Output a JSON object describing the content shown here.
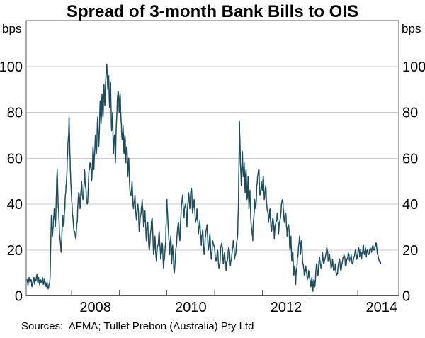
{
  "title": "Spread of 3-month Bank Bills to OIS",
  "unit": "bps",
  "source_note": "Sources:  AFMA; Tullet Prebon (Australia) Pty Ltd",
  "colors": {
    "line": "#1d4e5e",
    "grid": "#c9c9c9",
    "frame": "#58595b",
    "text": "#000000"
  },
  "chart_data": {
    "type": "line",
    "title": "Spread of 3-month Bank Bills to OIS",
    "ylabel_left": "bps",
    "ylabel_right": "bps",
    "x_domain": [
      2007.05,
      2014.86
    ],
    "y_domain": [
      0,
      120
    ],
    "y_ticks": [
      0,
      20,
      40,
      60,
      80,
      100
    ],
    "y_gridlines": [
      20,
      40,
      60,
      80,
      100
    ],
    "x_year_ticks": [
      2008,
      2009,
      2010,
      2011,
      2012,
      2013,
      2014
    ],
    "x_labels": [
      {
        "pos": 2008.5,
        "text": "2008"
      },
      {
        "pos": 2010.5,
        "text": "2010"
      },
      {
        "pos": 2012.5,
        "text": "2012"
      },
      {
        "pos": 2014.5,
        "text": "2014"
      }
    ],
    "points": [
      [
        2007.07,
        7
      ],
      [
        2007.09,
        5
      ],
      [
        2007.11,
        8
      ],
      [
        2007.13,
        6
      ],
      [
        2007.15,
        7
      ],
      [
        2007.17,
        4
      ],
      [
        2007.19,
        6
      ],
      [
        2007.21,
        8
      ],
      [
        2007.23,
        5
      ],
      [
        2007.25,
        7
      ],
      [
        2007.27,
        9
      ],
      [
        2007.29,
        6
      ],
      [
        2007.31,
        8
      ],
      [
        2007.33,
        5
      ],
      [
        2007.35,
        7
      ],
      [
        2007.37,
        6
      ],
      [
        2007.39,
        8
      ],
      [
        2007.41,
        5
      ],
      [
        2007.43,
        7
      ],
      [
        2007.45,
        6
      ],
      [
        2007.47,
        4
      ],
      [
        2007.49,
        6
      ],
      [
        2007.51,
        3
      ],
      [
        2007.53,
        5
      ],
      [
        2007.55,
        8
      ],
      [
        2007.57,
        28
      ],
      [
        2007.58,
        35
      ],
      [
        2007.6,
        26
      ],
      [
        2007.62,
        33
      ],
      [
        2007.64,
        38
      ],
      [
        2007.66,
        30
      ],
      [
        2007.68,
        42
      ],
      [
        2007.7,
        55
      ],
      [
        2007.72,
        40
      ],
      [
        2007.74,
        32
      ],
      [
        2007.76,
        25
      ],
      [
        2007.78,
        19
      ],
      [
        2007.8,
        28
      ],
      [
        2007.82,
        35
      ],
      [
        2007.84,
        30
      ],
      [
        2007.86,
        38
      ],
      [
        2007.88,
        45
      ],
      [
        2007.9,
        52
      ],
      [
        2007.92,
        63
      ],
      [
        2007.94,
        70
      ],
      [
        2007.95,
        78
      ],
      [
        2007.97,
        60
      ],
      [
        2007.99,
        48
      ],
      [
        2008.01,
        40
      ],
      [
        2008.03,
        34
      ],
      [
        2008.06,
        28
      ],
      [
        2008.09,
        25
      ],
      [
        2008.12,
        32
      ],
      [
        2008.15,
        45
      ],
      [
        2008.18,
        38
      ],
      [
        2008.21,
        50
      ],
      [
        2008.24,
        42
      ],
      [
        2008.27,
        55
      ],
      [
        2008.3,
        47
      ],
      [
        2008.33,
        40
      ],
      [
        2008.36,
        52
      ],
      [
        2008.39,
        58
      ],
      [
        2008.42,
        50
      ],
      [
        2008.45,
        65
      ],
      [
        2008.47,
        55
      ],
      [
        2008.5,
        70
      ],
      [
        2008.52,
        62
      ],
      [
        2008.55,
        78
      ],
      [
        2008.57,
        65
      ],
      [
        2008.6,
        85
      ],
      [
        2008.62,
        75
      ],
      [
        2008.64,
        88
      ],
      [
        2008.66,
        78
      ],
      [
        2008.68,
        92
      ],
      [
        2008.7,
        83
      ],
      [
        2008.72,
        95
      ],
      [
        2008.74,
        101
      ],
      [
        2008.76,
        90
      ],
      [
        2008.78,
        96
      ],
      [
        2008.8,
        82
      ],
      [
        2008.82,
        93
      ],
      [
        2008.84,
        72
      ],
      [
        2008.86,
        80
      ],
      [
        2008.88,
        62
      ],
      [
        2008.9,
        70
      ],
      [
        2008.92,
        58
      ],
      [
        2008.94,
        75
      ],
      [
        2008.96,
        85
      ],
      [
        2008.98,
        89
      ],
      [
        2009.0,
        80
      ],
      [
        2009.02,
        88
      ],
      [
        2009.04,
        76
      ],
      [
        2009.06,
        68
      ],
      [
        2009.08,
        74
      ],
      [
        2009.1,
        62
      ],
      [
        2009.12,
        70
      ],
      [
        2009.14,
        58
      ],
      [
        2009.16,
        65
      ],
      [
        2009.18,
        52
      ],
      [
        2009.2,
        60
      ],
      [
        2009.22,
        48
      ],
      [
        2009.24,
        44
      ],
      [
        2009.27,
        50
      ],
      [
        2009.3,
        38
      ],
      [
        2009.33,
        44
      ],
      [
        2009.36,
        33
      ],
      [
        2009.39,
        40
      ],
      [
        2009.42,
        28
      ],
      [
        2009.45,
        35
      ],
      [
        2009.48,
        42
      ],
      [
        2009.51,
        30
      ],
      [
        2009.54,
        37
      ],
      [
        2009.57,
        24
      ],
      [
        2009.6,
        32
      ],
      [
        2009.63,
        20
      ],
      [
        2009.66,
        28
      ],
      [
        2009.69,
        34
      ],
      [
        2009.72,
        18
      ],
      [
        2009.75,
        26
      ],
      [
        2009.78,
        15
      ],
      [
        2009.81,
        22
      ],
      [
        2009.84,
        28
      ],
      [
        2009.87,
        16
      ],
      [
        2009.9,
        23
      ],
      [
        2009.93,
        12
      ],
      [
        2009.96,
        20
      ],
      [
        2009.98,
        30
      ],
      [
        2010.0,
        42
      ],
      [
        2010.02,
        33
      ],
      [
        2010.04,
        25
      ],
      [
        2010.06,
        18
      ],
      [
        2010.08,
        26
      ],
      [
        2010.1,
        14
      ],
      [
        2010.12,
        22
      ],
      [
        2010.15,
        10
      ],
      [
        2010.18,
        18
      ],
      [
        2010.21,
        26
      ],
      [
        2010.24,
        32
      ],
      [
        2010.27,
        24
      ],
      [
        2010.3,
        38
      ],
      [
        2010.33,
        44
      ],
      [
        2010.36,
        34
      ],
      [
        2010.39,
        40
      ],
      [
        2010.42,
        30
      ],
      [
        2010.45,
        45
      ],
      [
        2010.48,
        38
      ],
      [
        2010.51,
        47
      ],
      [
        2010.54,
        36
      ],
      [
        2010.57,
        42
      ],
      [
        2010.6,
        32
      ],
      [
        2010.63,
        38
      ],
      [
        2010.66,
        27
      ],
      [
        2010.69,
        33
      ],
      [
        2010.72,
        22
      ],
      [
        2010.75,
        29
      ],
      [
        2010.78,
        18
      ],
      [
        2010.81,
        26
      ],
      [
        2010.84,
        31
      ],
      [
        2010.87,
        20
      ],
      [
        2010.9,
        27
      ],
      [
        2010.93,
        16
      ],
      [
        2010.96,
        24
      ],
      [
        2011.0,
        21
      ],
      [
        2011.03,
        15
      ],
      [
        2011.06,
        20
      ],
      [
        2011.09,
        12
      ],
      [
        2011.12,
        18
      ],
      [
        2011.15,
        23
      ],
      [
        2011.18,
        14
      ],
      [
        2011.21,
        19
      ],
      [
        2011.24,
        11
      ],
      [
        2011.27,
        16
      ],
      [
        2011.3,
        21
      ],
      [
        2011.33,
        13
      ],
      [
        2011.36,
        18
      ],
      [
        2011.39,
        24
      ],
      [
        2011.42,
        16
      ],
      [
        2011.45,
        20
      ],
      [
        2011.48,
        26
      ],
      [
        2011.5,
        40
      ],
      [
        2011.52,
        76
      ],
      [
        2011.54,
        58
      ],
      [
        2011.56,
        48
      ],
      [
        2011.58,
        63
      ],
      [
        2011.6,
        52
      ],
      [
        2011.62,
        58
      ],
      [
        2011.64,
        45
      ],
      [
        2011.66,
        55
      ],
      [
        2011.68,
        42
      ],
      [
        2011.7,
        52
      ],
      [
        2011.72,
        38
      ],
      [
        2011.74,
        46
      ],
      [
        2011.76,
        33
      ],
      [
        2011.78,
        28
      ],
      [
        2011.8,
        24
      ],
      [
        2011.82,
        34
      ],
      [
        2011.84,
        42
      ],
      [
        2011.86,
        38
      ],
      [
        2011.88,
        46
      ],
      [
        2011.9,
        52
      ],
      [
        2011.93,
        55
      ],
      [
        2011.95,
        44
      ],
      [
        2011.98,
        50
      ],
      [
        2012.0,
        46
      ],
      [
        2012.02,
        52
      ],
      [
        2012.04,
        42
      ],
      [
        2012.07,
        48
      ],
      [
        2012.1,
        38
      ],
      [
        2012.13,
        32
      ],
      [
        2012.16,
        38
      ],
      [
        2012.19,
        28
      ],
      [
        2012.22,
        34
      ],
      [
        2012.25,
        25
      ],
      [
        2012.28,
        31
      ],
      [
        2012.31,
        36
      ],
      [
        2012.34,
        27
      ],
      [
        2012.37,
        33
      ],
      [
        2012.4,
        40
      ],
      [
        2012.43,
        42
      ],
      [
        2012.46,
        32
      ],
      [
        2012.49,
        36
      ],
      [
        2012.52,
        26
      ],
      [
        2012.55,
        31
      ],
      [
        2012.58,
        20
      ],
      [
        2012.6,
        26
      ],
      [
        2012.62,
        15
      ],
      [
        2012.64,
        19
      ],
      [
        2012.66,
        9
      ],
      [
        2012.68,
        13
      ],
      [
        2012.7,
        5
      ],
      [
        2012.72,
        12
      ],
      [
        2012.74,
        17
      ],
      [
        2012.76,
        22
      ],
      [
        2012.78,
        26
      ],
      [
        2012.8,
        18
      ],
      [
        2012.82,
        24
      ],
      [
        2012.85,
        14
      ],
      [
        2012.88,
        9
      ],
      [
        2012.91,
        13
      ],
      [
        2012.94,
        7
      ],
      [
        2012.97,
        11
      ],
      [
        2013.0,
        7
      ],
      [
        2013.02,
        4
      ],
      [
        2013.04,
        8
      ],
      [
        2013.06,
        2
      ],
      [
        2013.08,
        7
      ],
      [
        2013.1,
        4
      ],
      [
        2013.12,
        10
      ],
      [
        2013.14,
        14
      ],
      [
        2013.16,
        9
      ],
      [
        2013.18,
        13
      ],
      [
        2013.2,
        17
      ],
      [
        2013.23,
        12
      ],
      [
        2013.26,
        19
      ],
      [
        2013.29,
        14
      ],
      [
        2013.32,
        17
      ],
      [
        2013.35,
        21
      ],
      [
        2013.38,
        15
      ],
      [
        2013.41,
        18
      ],
      [
        2013.44,
        12
      ],
      [
        2013.47,
        16
      ],
      [
        2013.5,
        11
      ],
      [
        2013.53,
        14
      ],
      [
        2013.56,
        9
      ],
      [
        2013.59,
        13
      ],
      [
        2013.62,
        16
      ],
      [
        2013.65,
        11
      ],
      [
        2013.68,
        15
      ],
      [
        2013.71,
        18
      ],
      [
        2013.74,
        13
      ],
      [
        2013.77,
        16
      ],
      [
        2013.8,
        19
      ],
      [
        2013.83,
        15
      ],
      [
        2013.86,
        18
      ],
      [
        2013.89,
        14
      ],
      [
        2013.92,
        17
      ],
      [
        2013.95,
        20
      ],
      [
        2013.98,
        16
      ],
      [
        2014.0,
        18
      ],
      [
        2014.02,
        21
      ],
      [
        2014.04,
        17
      ],
      [
        2014.06,
        20
      ],
      [
        2014.08,
        16
      ],
      [
        2014.1,
        19
      ],
      [
        2014.12,
        22
      ],
      [
        2014.14,
        18
      ],
      [
        2014.16,
        21
      ],
      [
        2014.18,
        17
      ],
      [
        2014.2,
        20
      ],
      [
        2014.23,
        18
      ],
      [
        2014.26,
        21
      ],
      [
        2014.29,
        19
      ],
      [
        2014.32,
        22
      ],
      [
        2014.35,
        20
      ],
      [
        2014.38,
        23
      ],
      [
        2014.4,
        21
      ],
      [
        2014.42,
        18
      ],
      [
        2014.44,
        16
      ],
      [
        2014.46,
        15
      ],
      [
        2014.48,
        14
      ]
    ]
  }
}
